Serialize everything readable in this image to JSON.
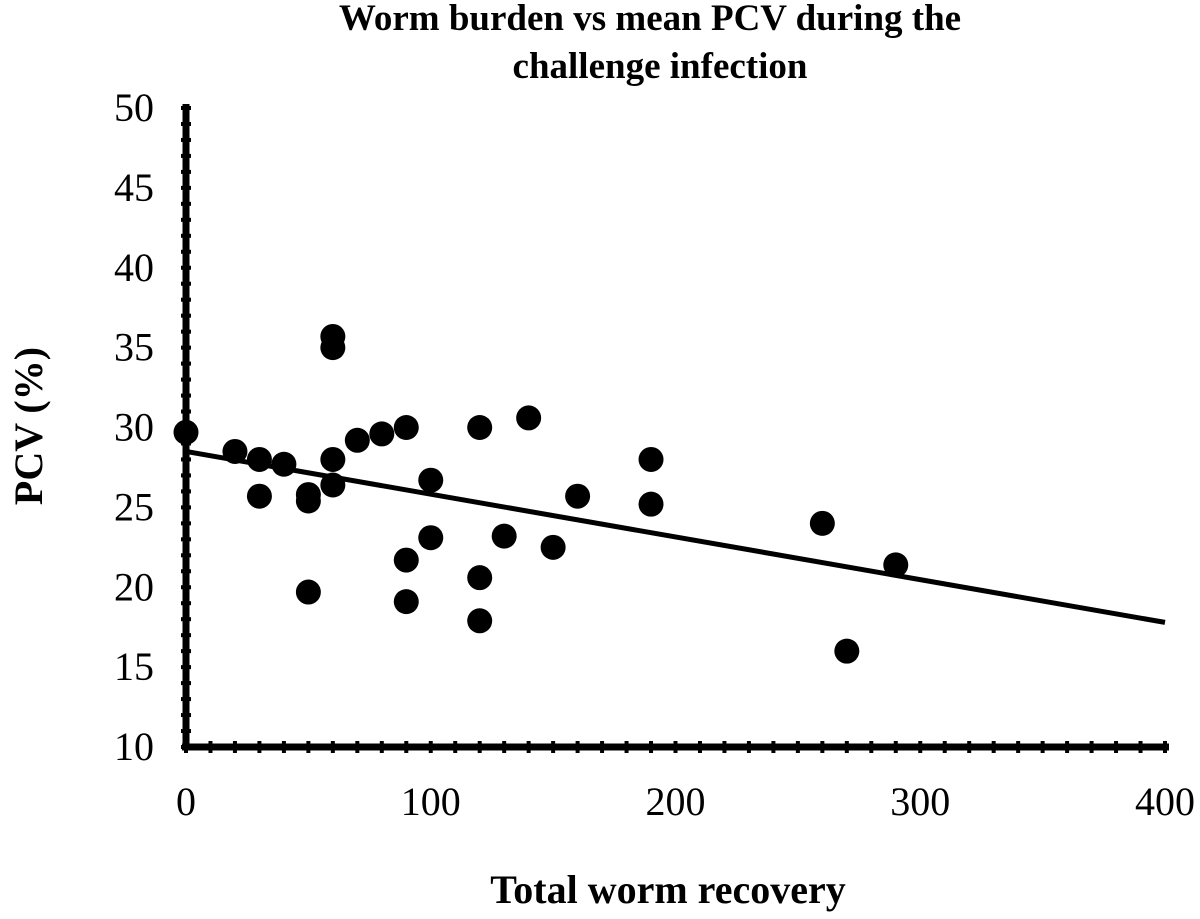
{
  "chart_data": {
    "type": "scatter",
    "title_lines": [
      "Worm burden vs mean PCV during the",
      "challenge infection"
    ],
    "xlabel": "Total worm recovery",
    "ylabel": "PCV (%)",
    "xlim": [
      0,
      400
    ],
    "ylim": [
      10,
      50
    ],
    "x_ticks": [
      "0",
      "100",
      "200",
      "300",
      "400"
    ],
    "y_ticks": [
      "10",
      "15",
      "20",
      "25",
      "30",
      "35",
      "40",
      "45",
      "50"
    ],
    "grid": false,
    "legend": "none",
    "points": [
      {
        "x": 0,
        "y": 29.7
      },
      {
        "x": 20,
        "y": 28.5
      },
      {
        "x": 30,
        "y": 28.0
      },
      {
        "x": 30,
        "y": 25.7
      },
      {
        "x": 40,
        "y": 27.7
      },
      {
        "x": 50,
        "y": 25.8
      },
      {
        "x": 50,
        "y": 25.4
      },
      {
        "x": 50,
        "y": 19.7
      },
      {
        "x": 60,
        "y": 35.7
      },
      {
        "x": 60,
        "y": 35.0
      },
      {
        "x": 60,
        "y": 28.0
      },
      {
        "x": 60,
        "y": 26.4
      },
      {
        "x": 70,
        "y": 29.2
      },
      {
        "x": 80,
        "y": 29.6
      },
      {
        "x": 90,
        "y": 30.0
      },
      {
        "x": 90,
        "y": 21.7
      },
      {
        "x": 90,
        "y": 19.1
      },
      {
        "x": 100,
        "y": 26.7
      },
      {
        "x": 100,
        "y": 23.1
      },
      {
        "x": 120,
        "y": 30.0
      },
      {
        "x": 120,
        "y": 20.6
      },
      {
        "x": 120,
        "y": 17.9
      },
      {
        "x": 130,
        "y": 23.2
      },
      {
        "x": 140,
        "y": 30.6
      },
      {
        "x": 150,
        "y": 22.5
      },
      {
        "x": 160,
        "y": 25.7
      },
      {
        "x": 190,
        "y": 28.0
      },
      {
        "x": 190,
        "y": 25.2
      },
      {
        "x": 260,
        "y": 24.0
      },
      {
        "x": 270,
        "y": 16.0
      },
      {
        "x": 290,
        "y": 21.4
      }
    ],
    "trendline": {
      "x": [
        0,
        400
      ],
      "y": [
        28.5,
        17.8
      ]
    }
  }
}
